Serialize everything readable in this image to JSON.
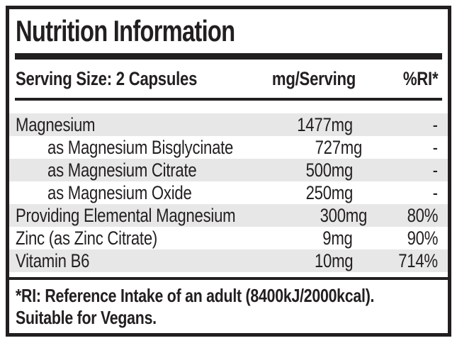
{
  "label": {
    "title": "Nutrition Information",
    "header": {
      "serving_size": "Serving Size: 2 Capsules",
      "amount_column": "mg/Serving",
      "ri_column": "%RI*"
    },
    "rows": [
      {
        "name": "Magnesium",
        "amount": "1477mg",
        "ri": "-",
        "indent": false
      },
      {
        "name": "as Magnesium Bisglycinate",
        "amount": "727mg",
        "ri": "-",
        "indent": true
      },
      {
        "name": "as Magnesium Citrate",
        "amount": "500mg",
        "ri": "-",
        "indent": true
      },
      {
        "name": "as Magnesium Oxide",
        "amount": "250mg",
        "ri": "-",
        "indent": true
      },
      {
        "name": "Providing Elemental Magnesium",
        "amount": "300mg",
        "ri": "80%",
        "indent": false
      },
      {
        "name": "Zinc (as Zinc Citrate)",
        "amount": "9mg",
        "ri": "90%",
        "indent": false
      },
      {
        "name": "Vitamin B6",
        "amount": "10mg",
        "ri": "714%",
        "indent": false
      }
    ],
    "footnote": {
      "line1": "*RI: Reference Intake of an adult (8400kJ/2000kcal).",
      "line2": "Suitable for Vegans."
    },
    "colors": {
      "ink": "#221f20",
      "stripe": "#e7e7e7",
      "background": "#ffffff"
    }
  }
}
